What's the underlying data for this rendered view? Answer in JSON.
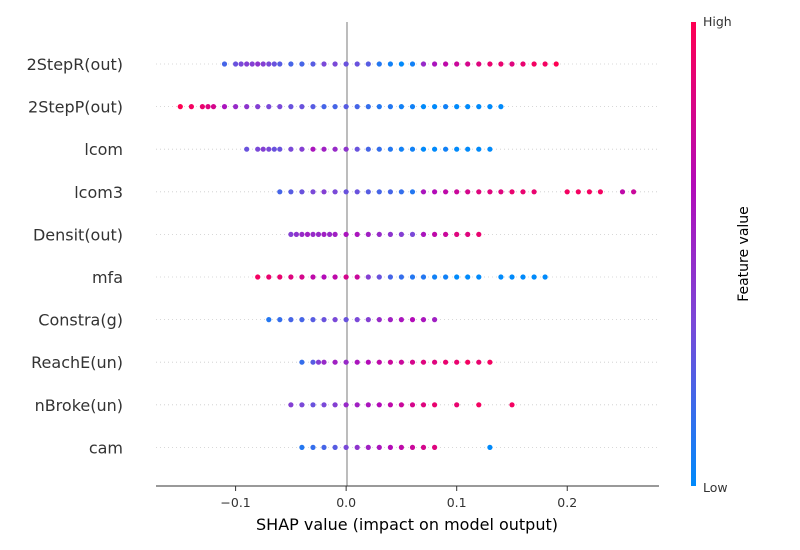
{
  "chart_data": {
    "type": "scatter",
    "subtype": "shap-beeswarm",
    "title": "",
    "xlabel": "SHAP value (impact on model output)",
    "xlim": [
      -0.172,
      0.283
    ],
    "xticks": [
      "−0.1",
      "0.0",
      "0.1",
      "0.2"
    ],
    "xtick_values": [
      -0.1,
      0.0,
      0.1,
      0.2
    ],
    "grid": "horizontal dotted row lines",
    "colorbar": {
      "label": "Feature value",
      "high_label": "High",
      "low_label": "Low",
      "colors": [
        "#008afb",
        "#7a49d8",
        "#b30bb8",
        "#ff0052"
      ],
      "placement": "right"
    },
    "features": [
      {
        "name": "2StepR(out)",
        "points": [
          [
            -0.11,
            0.2
          ],
          [
            -0.1,
            0.3
          ],
          [
            -0.095,
            0.35
          ],
          [
            -0.09,
            0.4
          ],
          [
            -0.085,
            0.4
          ],
          [
            -0.08,
            0.45
          ],
          [
            -0.075,
            0.4
          ],
          [
            -0.07,
            0.35
          ],
          [
            -0.065,
            0.3
          ],
          [
            -0.06,
            0.25
          ],
          [
            -0.05,
            0.2
          ],
          [
            -0.04,
            0.2
          ],
          [
            -0.03,
            0.25
          ],
          [
            -0.02,
            0.35
          ],
          [
            -0.01,
            0.35
          ],
          [
            0.0,
            0.3
          ],
          [
            0.01,
            0.3
          ],
          [
            0.02,
            0.25
          ],
          [
            0.03,
            0.1
          ],
          [
            0.04,
            0.05
          ],
          [
            0.05,
            0.0
          ],
          [
            0.06,
            0.05
          ],
          [
            0.07,
            0.5
          ],
          [
            0.08,
            0.6
          ],
          [
            0.09,
            0.7
          ],
          [
            0.1,
            0.75
          ],
          [
            0.11,
            0.8
          ],
          [
            0.12,
            0.85
          ],
          [
            0.13,
            0.9
          ],
          [
            0.14,
            0.9
          ],
          [
            0.15,
            0.85
          ],
          [
            0.16,
            0.9
          ],
          [
            0.17,
            0.95
          ],
          [
            0.18,
            0.95
          ],
          [
            0.19,
            1.0
          ]
        ]
      },
      {
        "name": "2StepP(out)",
        "points": [
          [
            -0.15,
            1.0
          ],
          [
            -0.14,
            0.95
          ],
          [
            -0.13,
            0.9
          ],
          [
            -0.125,
            0.85
          ],
          [
            -0.12,
            0.8
          ],
          [
            -0.11,
            0.6
          ],
          [
            -0.1,
            0.5
          ],
          [
            -0.09,
            0.45
          ],
          [
            -0.08,
            0.4
          ],
          [
            -0.07,
            0.35
          ],
          [
            -0.06,
            0.35
          ],
          [
            -0.05,
            0.3
          ],
          [
            -0.04,
            0.3
          ],
          [
            -0.03,
            0.25
          ],
          [
            -0.02,
            0.2
          ],
          [
            -0.01,
            0.2
          ],
          [
            0.0,
            0.25
          ],
          [
            0.01,
            0.2
          ],
          [
            0.02,
            0.15
          ],
          [
            0.03,
            0.1
          ],
          [
            0.04,
            0.1
          ],
          [
            0.05,
            0.05
          ],
          [
            0.06,
            0.05
          ],
          [
            0.07,
            0.0
          ],
          [
            0.08,
            0.0
          ],
          [
            0.09,
            0.05
          ],
          [
            0.1,
            0.0
          ],
          [
            0.11,
            0.0
          ],
          [
            0.12,
            0.0
          ],
          [
            0.13,
            0.0
          ],
          [
            0.14,
            0.0
          ]
        ]
      },
      {
        "name": "lcom",
        "points": [
          [
            -0.09,
            0.3
          ],
          [
            -0.08,
            0.35
          ],
          [
            -0.075,
            0.4
          ],
          [
            -0.07,
            0.35
          ],
          [
            -0.065,
            0.3
          ],
          [
            -0.06,
            0.3
          ],
          [
            -0.05,
            0.35
          ],
          [
            -0.04,
            0.4
          ],
          [
            -0.03,
            0.6
          ],
          [
            -0.02,
            0.55
          ],
          [
            -0.01,
            0.5
          ],
          [
            0.0,
            0.45
          ],
          [
            0.01,
            0.3
          ],
          [
            0.02,
            0.2
          ],
          [
            0.03,
            0.15
          ],
          [
            0.04,
            0.1
          ],
          [
            0.05,
            0.05
          ],
          [
            0.06,
            0.05
          ],
          [
            0.07,
            0.0
          ],
          [
            0.08,
            0.0
          ],
          [
            0.09,
            0.05
          ],
          [
            0.1,
            0.0
          ],
          [
            0.11,
            0.0
          ],
          [
            0.12,
            0.0
          ],
          [
            0.13,
            0.0
          ]
        ]
      },
      {
        "name": "lcom3",
        "points": [
          [
            -0.06,
            0.2
          ],
          [
            -0.05,
            0.25
          ],
          [
            -0.04,
            0.3
          ],
          [
            -0.03,
            0.35
          ],
          [
            -0.02,
            0.4
          ],
          [
            -0.01,
            0.35
          ],
          [
            0.0,
            0.3
          ],
          [
            0.01,
            0.3
          ],
          [
            0.02,
            0.25
          ],
          [
            0.03,
            0.2
          ],
          [
            0.04,
            0.2
          ],
          [
            0.05,
            0.15
          ],
          [
            0.06,
            0.1
          ],
          [
            0.07,
            0.6
          ],
          [
            0.08,
            0.65
          ],
          [
            0.09,
            0.7
          ],
          [
            0.1,
            0.75
          ],
          [
            0.11,
            0.8
          ],
          [
            0.12,
            0.85
          ],
          [
            0.13,
            0.85
          ],
          [
            0.14,
            0.85
          ],
          [
            0.15,
            0.9
          ],
          [
            0.16,
            0.9
          ],
          [
            0.17,
            0.9
          ],
          [
            0.2,
            0.95
          ],
          [
            0.21,
            0.95
          ],
          [
            0.22,
            0.95
          ],
          [
            0.23,
            0.95
          ],
          [
            0.25,
            0.7
          ],
          [
            0.26,
            0.75
          ]
        ]
      },
      {
        "name": "Densit(out)",
        "points": [
          [
            -0.05,
            0.4
          ],
          [
            -0.045,
            0.45
          ],
          [
            -0.04,
            0.5
          ],
          [
            -0.035,
            0.55
          ],
          [
            -0.03,
            0.5
          ],
          [
            -0.025,
            0.5
          ],
          [
            -0.02,
            0.55
          ],
          [
            -0.015,
            0.5
          ],
          [
            -0.01,
            0.55
          ],
          [
            0.0,
            0.6
          ],
          [
            0.01,
            0.6
          ],
          [
            0.02,
            0.55
          ],
          [
            0.03,
            0.5
          ],
          [
            0.04,
            0.45
          ],
          [
            0.05,
            0.4
          ],
          [
            0.06,
            0.35
          ],
          [
            0.07,
            0.6
          ],
          [
            0.08,
            0.7
          ],
          [
            0.09,
            0.75
          ],
          [
            0.1,
            0.85
          ],
          [
            0.11,
            0.85
          ],
          [
            0.12,
            0.9
          ]
        ]
      },
      {
        "name": "mfa",
        "points": [
          [
            -0.08,
            0.95
          ],
          [
            -0.07,
            0.9
          ],
          [
            -0.06,
            0.9
          ],
          [
            -0.05,
            0.85
          ],
          [
            -0.04,
            0.8
          ],
          [
            -0.03,
            0.7
          ],
          [
            -0.02,
            0.65
          ],
          [
            -0.01,
            0.7
          ],
          [
            0.0,
            0.8
          ],
          [
            0.01,
            0.75
          ],
          [
            0.02,
            0.4
          ],
          [
            0.03,
            0.3
          ],
          [
            0.04,
            0.2
          ],
          [
            0.05,
            0.15
          ],
          [
            0.06,
            0.1
          ],
          [
            0.07,
            0.1
          ],
          [
            0.08,
            0.05
          ],
          [
            0.09,
            0.05
          ],
          [
            0.1,
            0.0
          ],
          [
            0.11,
            0.0
          ],
          [
            0.12,
            0.0
          ],
          [
            0.14,
            0.0
          ],
          [
            0.15,
            0.0
          ],
          [
            0.16,
            0.0
          ],
          [
            0.17,
            0.0
          ],
          [
            0.18,
            0.0
          ]
        ]
      },
      {
        "name": "Constra(g)",
        "points": [
          [
            -0.07,
            0.1
          ],
          [
            -0.06,
            0.15
          ],
          [
            -0.05,
            0.2
          ],
          [
            -0.04,
            0.2
          ],
          [
            -0.03,
            0.25
          ],
          [
            -0.02,
            0.3
          ],
          [
            -0.01,
            0.35
          ],
          [
            0.0,
            0.3
          ],
          [
            0.01,
            0.35
          ],
          [
            0.02,
            0.4
          ],
          [
            0.03,
            0.5
          ],
          [
            0.04,
            0.55
          ],
          [
            0.05,
            0.6
          ],
          [
            0.06,
            0.65
          ],
          [
            0.07,
            0.6
          ],
          [
            0.08,
            0.55
          ]
        ]
      },
      {
        "name": "ReachE(un)",
        "points": [
          [
            -0.04,
            0.15
          ],
          [
            -0.03,
            0.25
          ],
          [
            -0.025,
            0.4
          ],
          [
            -0.02,
            0.5
          ],
          [
            -0.01,
            0.55
          ],
          [
            0.0,
            0.5
          ],
          [
            0.01,
            0.6
          ],
          [
            0.02,
            0.65
          ],
          [
            0.03,
            0.7
          ],
          [
            0.04,
            0.75
          ],
          [
            0.05,
            0.75
          ],
          [
            0.06,
            0.8
          ],
          [
            0.07,
            0.85
          ],
          [
            0.08,
            0.85
          ],
          [
            0.09,
            0.9
          ],
          [
            0.1,
            0.9
          ],
          [
            0.11,
            0.95
          ],
          [
            0.12,
            0.9
          ],
          [
            0.13,
            0.95
          ]
        ]
      },
      {
        "name": "nBroke(un)",
        "points": [
          [
            -0.05,
            0.4
          ],
          [
            -0.04,
            0.35
          ],
          [
            -0.03,
            0.3
          ],
          [
            -0.02,
            0.35
          ],
          [
            -0.01,
            0.4
          ],
          [
            0.0,
            0.5
          ],
          [
            0.01,
            0.55
          ],
          [
            0.02,
            0.6
          ],
          [
            0.03,
            0.65
          ],
          [
            0.04,
            0.7
          ],
          [
            0.05,
            0.75
          ],
          [
            0.06,
            0.8
          ],
          [
            0.07,
            0.85
          ],
          [
            0.08,
            0.9
          ],
          [
            0.1,
            0.9
          ],
          [
            0.12,
            0.95
          ],
          [
            0.15,
            0.95
          ]
        ]
      },
      {
        "name": "cam",
        "points": [
          [
            -0.04,
            0.1
          ],
          [
            -0.03,
            0.15
          ],
          [
            -0.02,
            0.2
          ],
          [
            -0.01,
            0.25
          ],
          [
            0.0,
            0.35
          ],
          [
            0.01,
            0.45
          ],
          [
            0.02,
            0.55
          ],
          [
            0.03,
            0.6
          ],
          [
            0.04,
            0.65
          ],
          [
            0.05,
            0.7
          ],
          [
            0.06,
            0.75
          ],
          [
            0.07,
            0.8
          ],
          [
            0.08,
            0.85
          ],
          [
            0.13,
            0.0
          ]
        ]
      }
    ]
  }
}
